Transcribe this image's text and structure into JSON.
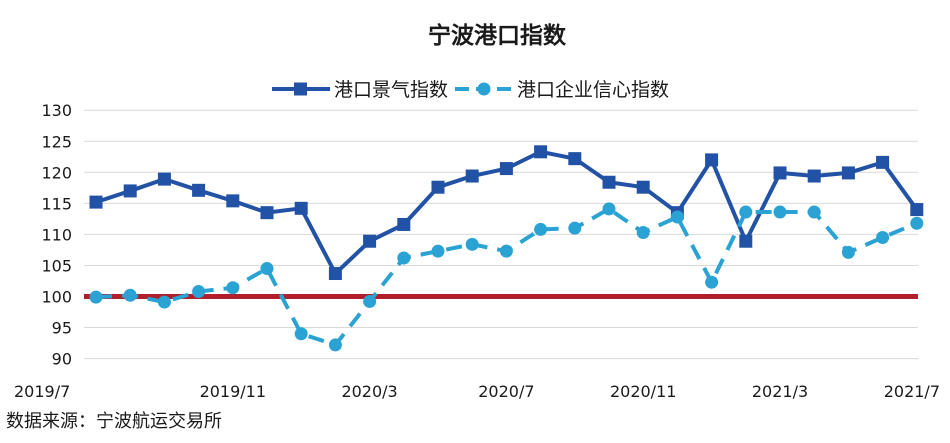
{
  "chart_data": {
    "type": "line",
    "title": "宁波港口指数",
    "x": [
      "2019/7",
      "2019/8",
      "2019/9",
      "2019/10",
      "2019/11",
      "2019/12",
      "2020/1",
      "2020/2",
      "2020/3",
      "2020/4",
      "2020/5",
      "2020/6",
      "2020/7",
      "2020/8",
      "2020/9",
      "2020/10",
      "2020/11",
      "2020/12",
      "2021/1",
      "2021/2",
      "2021/3",
      "2021/4",
      "2021/5",
      "2021/6",
      "2021/7"
    ],
    "x_tick_labels": [
      "2019/7",
      "2019/11",
      "2020/3",
      "2020/7",
      "2020/11",
      "2021/3",
      "2021/7"
    ],
    "y_ticks": [
      "130",
      "125",
      "120",
      "115",
      "110",
      "105",
      "100",
      "95",
      "90"
    ],
    "ylim": [
      88,
      131
    ],
    "reference_line": 100,
    "series": [
      {
        "name": "港口景气指数",
        "style": "solid-square",
        "color": "#2252a6",
        "values": [
          115.2,
          117.0,
          118.9,
          117.1,
          115.4,
          113.5,
          114.2,
          103.7,
          108.9,
          111.6,
          117.6,
          119.4,
          120.6,
          123.3,
          122.2,
          118.4,
          117.6,
          113.5,
          122.0,
          108.9,
          119.9,
          119.4,
          119.9,
          121.6,
          114.0
        ]
      },
      {
        "name": "港口企业信心指数",
        "style": "dashed-circle",
        "color": "#2aa3d4",
        "values": [
          99.9,
          100.2,
          99.1,
          100.8,
          101.4,
          104.5,
          94.0,
          92.2,
          99.2,
          106.2,
          107.3,
          108.4,
          107.3,
          110.8,
          111.0,
          114.1,
          110.3,
          112.8,
          102.3,
          113.6,
          113.6,
          113.6,
          107.1,
          109.5,
          111.8
        ]
      }
    ]
  },
  "source_note": "数据来源：宁波航运交易所",
  "colors": {
    "reference_line": "#b01f2a",
    "gridline": "#d9d9d9",
    "axis_text": "#1a1a1a"
  }
}
